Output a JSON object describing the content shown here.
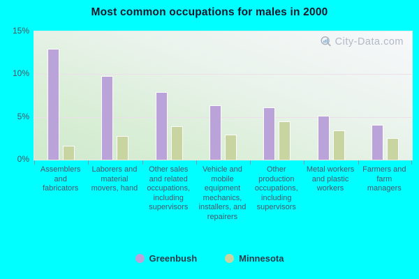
{
  "title": "Most common occupations for males in 2000",
  "watermark": "City-Data.com",
  "colors": {
    "background": "#00ffff",
    "greenbush_bar": "#b9a3d8",
    "minnesota_bar": "#c8d5a1",
    "plot_gradient_top": "#f7f8fb",
    "plot_gradient_bottom": "#cfe9cc",
    "gridline": "#ecdfe9"
  },
  "chart_data": {
    "type": "bar",
    "title": "Most common occupations for males in 2000",
    "xlabel": "",
    "ylabel": "",
    "ylim": [
      0,
      15
    ],
    "y_ticks": [
      {
        "label": "15%",
        "value": 15
      },
      {
        "label": "10%",
        "value": 10
      },
      {
        "label": "5%",
        "value": 5
      },
      {
        "label": "0%",
        "value": 0
      }
    ],
    "grid_values": [
      5,
      10
    ],
    "grid": true,
    "legend_position": "bottom",
    "categories": [
      "Assemblers and fabricators",
      "Laborers and material movers, hand",
      "Other sales and related occupations, including supervisors",
      "Vehicle and mobile equipment mechanics, installers, and repairers",
      "Other production occupations, including supervisors",
      "Metal workers and plastic workers",
      "Farmers and farm managers"
    ],
    "series": [
      {
        "name": "Greenbush",
        "color": "#b9a3d8",
        "values": [
          13.0,
          9.8,
          7.9,
          6.4,
          6.1,
          5.1,
          4.1
        ]
      },
      {
        "name": "Minnesota",
        "color": "#c8d5a1",
        "values": [
          1.6,
          2.8,
          3.9,
          2.9,
          4.5,
          3.4,
          2.5
        ]
      }
    ]
  }
}
